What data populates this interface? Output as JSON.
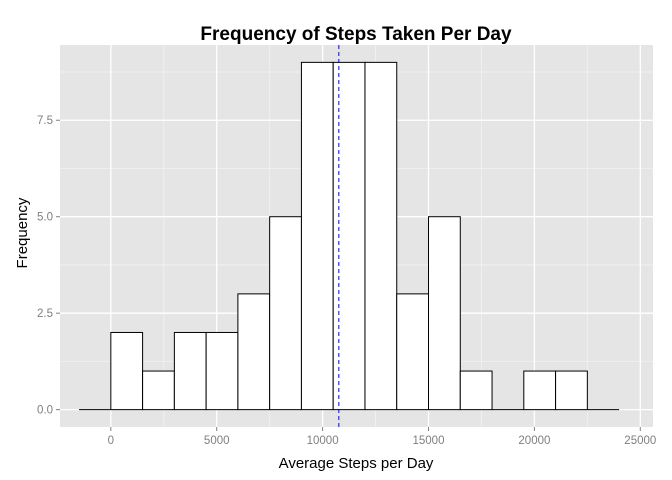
{
  "chart_data": {
    "type": "bar",
    "subtype": "histogram",
    "title": "Frequency of Steps Taken Per Day",
    "xlabel": "Average Steps per Day",
    "ylabel": "Frequency",
    "xlim": [
      -2400,
      25600
    ],
    "ylim": [
      -0.45,
      9.45
    ],
    "xticks": [
      0,
      5000,
      10000,
      15000,
      20000,
      25000
    ],
    "yticks": [
      0.0,
      2.5,
      5.0,
      7.5
    ],
    "ytick_labels": [
      "0.0",
      "2.5",
      "5.0",
      "7.5"
    ],
    "bins": [
      {
        "x0": -1500,
        "x1": 0,
        "count": 0
      },
      {
        "x0": 0,
        "x1": 1500,
        "count": 2
      },
      {
        "x0": 1500,
        "x1": 3000,
        "count": 1
      },
      {
        "x0": 3000,
        "x1": 4500,
        "count": 2
      },
      {
        "x0": 4500,
        "x1": 6000,
        "count": 2
      },
      {
        "x0": 6000,
        "x1": 7500,
        "count": 3
      },
      {
        "x0": 7500,
        "x1": 9000,
        "count": 5
      },
      {
        "x0": 9000,
        "x1": 10500,
        "count": 9
      },
      {
        "x0": 10500,
        "x1": 12000,
        "count": 9
      },
      {
        "x0": 12000,
        "x1": 13500,
        "count": 9
      },
      {
        "x0": 13500,
        "x1": 15000,
        "count": 3
      },
      {
        "x0": 15000,
        "x1": 16500,
        "count": 5
      },
      {
        "x0": 16500,
        "x1": 18000,
        "count": 1
      },
      {
        "x0": 18000,
        "x1": 19500,
        "count": 0
      },
      {
        "x0": 19500,
        "x1": 21000,
        "count": 1
      },
      {
        "x0": 21000,
        "x1": 22500,
        "count": 1
      },
      {
        "x0": 22500,
        "x1": 24000,
        "count": 0
      }
    ],
    "reference_line": {
      "x": 10766,
      "style": "dashed",
      "color": "#0000ff"
    },
    "grid": true,
    "colors": {
      "panel_background": "#e5e5e5",
      "grid_major": "#ffffff",
      "grid_minor": "#f2f2f2",
      "bar_fill": "#ffffff",
      "bar_outline": "#000000",
      "tick_label": "#7f7f7f"
    }
  }
}
